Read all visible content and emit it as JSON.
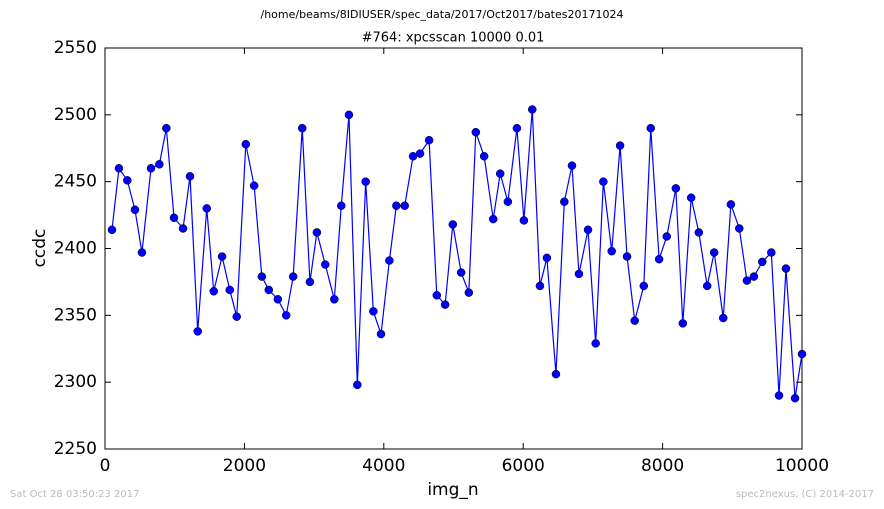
{
  "chart_data": {
    "type": "line",
    "suptitle": "/home/beams/8IDIUSER/spec_data/2017/Oct2017/bates20171024",
    "title": "#764: xpcsscan 10000 0.01",
    "xlabel": "img_n",
    "ylabel": "ccdc",
    "footer_left": "Sat Oct 28 03:50:23 2017",
    "footer_right": "spec2nexus, (C) 2014-2017",
    "x": [
      100,
      200,
      320,
      430,
      530,
      660,
      780,
      880,
      990,
      1120,
      1220,
      1330,
      1460,
      1560,
      1680,
      1790,
      1890,
      2020,
      2140,
      2250,
      2350,
      2480,
      2600,
      2700,
      2830,
      2940,
      3040,
      3160,
      3290,
      3390,
      3500,
      3620,
      3740,
      3850,
      3960,
      4080,
      4180,
      4300,
      4420,
      4520,
      4650,
      4760,
      4880,
      4990,
      5110,
      5220,
      5320,
      5440,
      5570,
      5670,
      5780,
      5910,
      6010,
      6130,
      6240,
      6340,
      6470,
      6590,
      6700,
      6800,
      6930,
      7040,
      7150,
      7270,
      7390,
      7490,
      7600,
      7730,
      7830,
      7950,
      8060,
      8190,
      8290,
      8410,
      8520,
      8640,
      8740,
      8870,
      8980,
      9100,
      9210,
      9310,
      9430,
      9560,
      9670,
      9770,
      9900,
      10000
    ],
    "series": [
      {
        "name": "ccdc",
        "color": "#0000ff",
        "values": [
          2414,
          2460,
          2451,
          2429,
          2397,
          2460,
          2463,
          2490,
          2423,
          2415,
          2454,
          2338,
          2430,
          2368,
          2394,
          2369,
          2349,
          2478,
          2447,
          2379,
          2369,
          2362,
          2350,
          2379,
          2490,
          2375,
          2412,
          2388,
          2362,
          2432,
          2500,
          2298,
          2450,
          2353,
          2336,
          2391,
          2432,
          2432,
          2469,
          2471,
          2481,
          2365,
          2358,
          2418,
          2382,
          2367,
          2487,
          2469,
          2422,
          2456,
          2435,
          2490,
          2421,
          2504,
          2372,
          2393,
          2306,
          2435,
          2462,
          2381,
          2414,
          2329,
          2450,
          2398,
          2477,
          2394,
          2346,
          2372,
          2490,
          2392,
          2409,
          2445,
          2344,
          2438,
          2412,
          2372,
          2397,
          2348,
          2433,
          2415,
          2376,
          2379,
          2390,
          2397,
          2290,
          2385,
          2288,
          2321
        ]
      }
    ],
    "xlim": [
      0,
      10000
    ],
    "xticks": [
      0,
      2000,
      4000,
      6000,
      8000,
      10000
    ],
    "ylim": [
      2250,
      2550
    ],
    "yticks": [
      2250,
      2300,
      2350,
      2400,
      2450,
      2500,
      2550
    ]
  }
}
